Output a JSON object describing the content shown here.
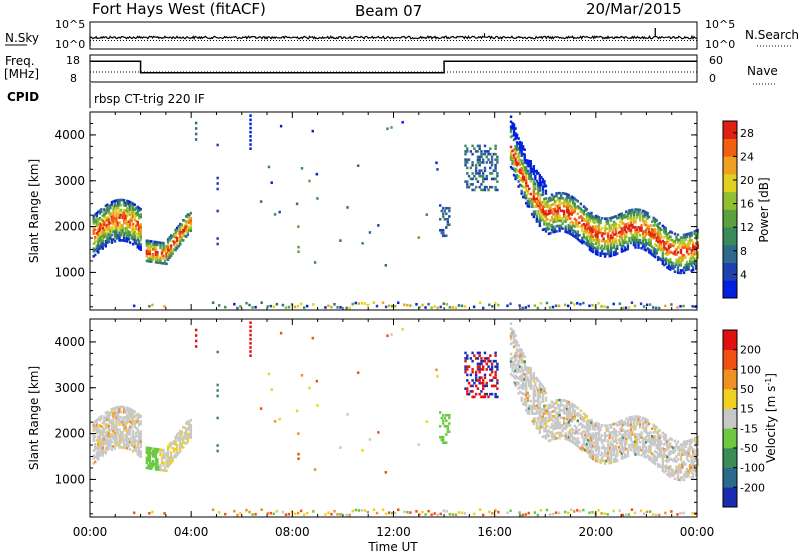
{
  "header": {
    "station": "Fort Hays West (fitACF)",
    "beam": "Beam 07",
    "date": "20/Mar/2015"
  },
  "noise_panel": {
    "left_label": "N.Sky",
    "right_label": "N.Search",
    "left_ticks": [
      "10^5",
      "10^0"
    ],
    "right_ticks": [
      "10^5",
      "10^0"
    ]
  },
  "freq_panel": {
    "left_label": "Freq.",
    "left_unit": "[MHz]",
    "left_ticks": [
      "18",
      "8"
    ],
    "right_label": "Nave",
    "right_ticks": [
      "60",
      "0"
    ],
    "freq_steps": [
      {
        "t0": 0.0,
        "t1": 2.0,
        "value": 17
      },
      {
        "t0": 2.0,
        "t1": 14.0,
        "value": 12
      },
      {
        "t0": 14.0,
        "t1": 24.0,
        "value": 17
      }
    ]
  },
  "cpid_label": "CPID",
  "cpid_text": "rbsp CT-trig 220 IF",
  "chart_data": [
    {
      "type": "heatmap",
      "name": "power",
      "ylabel": "Slant Range [km]",
      "xlabel": "Time UT",
      "ylim": [
        180,
        4500
      ],
      "xlim": [
        0,
        24
      ],
      "yticks": [
        "1000",
        "2000",
        "3000",
        "4000"
      ],
      "xticks": [
        "00:00",
        "04:00",
        "08:00",
        "12:00",
        "16:00",
        "20:00",
        "00:00"
      ],
      "colorbar": {
        "label": "Power [dB]",
        "ticks": [
          "4",
          "8",
          "12",
          "16",
          "20",
          "24",
          "28"
        ],
        "range": [
          0,
          30
        ],
        "colors": [
          "#0020e0",
          "#2040b0",
          "#2e6b8a",
          "#3a8a5a",
          "#5aa040",
          "#90c030",
          "#e0d020",
          "#f0a020",
          "#f06010",
          "#e02010"
        ]
      }
    },
    {
      "type": "heatmap",
      "name": "velocity",
      "ylabel": "Slant Range [km]",
      "xlabel": "Time UT",
      "ylim": [
        180,
        4500
      ],
      "xlim": [
        0,
        24
      ],
      "yticks": [
        "1000",
        "2000",
        "3000",
        "4000"
      ],
      "xticks": [
        "00:00",
        "04:00",
        "08:00",
        "12:00",
        "16:00",
        "20:00",
        "00:00"
      ],
      "colorbar": {
        "label": "Velocity [m s-1]",
        "ticks": [
          "200",
          "100",
          "50",
          "15",
          "-15",
          "-50",
          "-100",
          "-200"
        ],
        "colors": [
          "#1a2cb0",
          "#2c6a8c",
          "#3c8c5a",
          "#6cc840",
          "#c8c8c8",
          "#f0d020",
          "#f09020",
          "#f05010",
          "#e01010"
        ]
      }
    }
  ]
}
